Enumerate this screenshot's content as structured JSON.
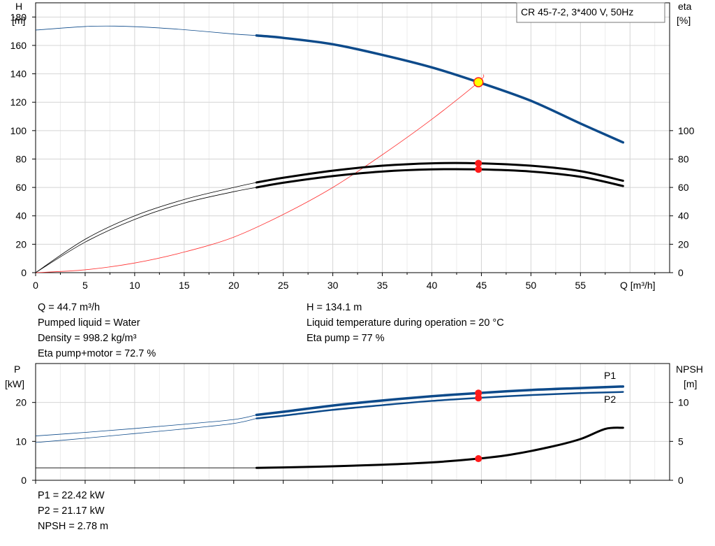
{
  "colors": {
    "head_curve": "#0d4a8a",
    "power_curve": "#0d4a8a",
    "efficiency_curve": "#000000",
    "npsh_curve": "#000000",
    "aux_curve": "#ff3030",
    "marker": "#ff1a1a",
    "duty_point_fill": "#ffff00",
    "grid": "#d4d4d4"
  },
  "chart_data": [
    {
      "type": "line",
      "title": "CR 45-7-2, 3*400 V, 50Hz",
      "xlabel": "Q [m³/h]",
      "ylabel": "H\n[m]",
      "ylabel_lines": [
        "H",
        "[m]"
      ],
      "y2label_lines": [
        "eta",
        "[%]"
      ],
      "xlim": [
        0,
        64
      ],
      "ylim": [
        0,
        190
      ],
      "y2lim": [
        0,
        190
      ],
      "xticks": [
        0,
        5,
        10,
        15,
        20,
        25,
        30,
        35,
        40,
        45,
        50,
        55
      ],
      "yticks": [
        0,
        20,
        40,
        60,
        80,
        100,
        120,
        140,
        160,
        180
      ],
      "y2ticks": [
        0,
        20,
        40,
        60,
        80,
        100
      ],
      "grid": true,
      "duty_point": {
        "x": 44.7,
        "y": 134.1
      },
      "series": [
        {
          "role": "head",
          "axis": "y",
          "thin_until": 22.3,
          "points": [
            [
              0,
              170.8
            ],
            [
              5,
              173.3
            ],
            [
              8,
              173.6
            ],
            [
              12,
              172.5
            ],
            [
              16,
              170.5
            ],
            [
              20,
              168.0
            ],
            [
              22.3,
              167.0
            ],
            [
              25,
              165.3
            ],
            [
              30,
              160.8
            ],
            [
              35,
              153.3
            ],
            [
              40,
              144.5
            ],
            [
              44.7,
              134.1
            ],
            [
              50,
              121.0
            ],
            [
              55,
              105.0
            ],
            [
              59.3,
              91.7
            ]
          ]
        },
        {
          "role": "eta_pump",
          "axis": "y2",
          "thin_until": 22.3,
          "points": [
            [
              0,
              0
            ],
            [
              5,
              23.5
            ],
            [
              10,
              40.0
            ],
            [
              15,
              51.5
            ],
            [
              20,
              60.0
            ],
            [
              22.3,
              63.5
            ],
            [
              25,
              66.8
            ],
            [
              30,
              71.8
            ],
            [
              35,
              75.3
            ],
            [
              40,
              77.0
            ],
            [
              44.7,
              77.0
            ],
            [
              50,
              75.3
            ],
            [
              55,
              71.5
            ],
            [
              59.3,
              64.7
            ]
          ]
        },
        {
          "role": "eta_pump_motor",
          "axis": "y2",
          "thin_until": 22.3,
          "points": [
            [
              0,
              0
            ],
            [
              5,
              21.5
            ],
            [
              10,
              37.5
            ],
            [
              15,
              49.0
            ],
            [
              20,
              57.0
            ],
            [
              22.3,
              60.0
            ],
            [
              25,
              63.3
            ],
            [
              30,
              68.0
            ],
            [
              35,
              71.2
            ],
            [
              40,
              72.7
            ],
            [
              44.7,
              72.7
            ],
            [
              50,
              71.2
            ],
            [
              55,
              67.5
            ],
            [
              59.3,
              61.0
            ]
          ]
        },
        {
          "role": "aux",
          "axis": "y",
          "thin_until": 64,
          "points": [
            [
              0,
              0
            ],
            [
              5,
              2
            ],
            [
              10,
              6.8
            ],
            [
              15,
              14.5
            ],
            [
              20,
              25
            ],
            [
              25,
              41
            ],
            [
              30,
              60
            ],
            [
              35,
              83
            ],
            [
              40,
              108
            ],
            [
              44.7,
              134.1
            ],
            [
              45.2,
              139.5
            ]
          ]
        }
      ],
      "markers": [
        {
          "x": 44.7,
          "y": 77.0,
          "axis": "y2"
        },
        {
          "x": 44.7,
          "y": 72.7,
          "axis": "y2"
        }
      ]
    },
    {
      "type": "line",
      "title": "",
      "xlabel": "",
      "ylabel_lines": [
        "P",
        "[kW]"
      ],
      "y2label_lines": [
        "NPSH",
        "[m]"
      ],
      "xlim": [
        0,
        64
      ],
      "ylim": [
        0,
        30
      ],
      "y2lim": [
        0,
        15
      ],
      "yticks": [
        0,
        10,
        20
      ],
      "y2ticks": [
        0,
        5,
        10
      ],
      "grid": true,
      "series": [
        {
          "name": "P1",
          "role": "p1",
          "axis": "y",
          "thin_until": 22.3,
          "points": [
            [
              0,
              11.4
            ],
            [
              5,
              12.3
            ],
            [
              10,
              13.3
            ],
            [
              15,
              14.4
            ],
            [
              20,
              15.6
            ],
            [
              22.3,
              16.8
            ],
            [
              25,
              17.6
            ],
            [
              30,
              19.2
            ],
            [
              35,
              20.5
            ],
            [
              40,
              21.6
            ],
            [
              44.7,
              22.42
            ],
            [
              50,
              23.2
            ],
            [
              55,
              23.7
            ],
            [
              59.3,
              24.1
            ]
          ]
        },
        {
          "name": "P2",
          "role": "p2",
          "axis": "y",
          "thin_until": 22.3,
          "points": [
            [
              0,
              9.7
            ],
            [
              5,
              10.8
            ],
            [
              10,
              12.0
            ],
            [
              15,
              13.2
            ],
            [
              20,
              14.6
            ],
            [
              22.3,
              15.9
            ],
            [
              25,
              16.6
            ],
            [
              30,
              18.1
            ],
            [
              35,
              19.3
            ],
            [
              40,
              20.4
            ],
            [
              44.7,
              21.17
            ],
            [
              50,
              21.9
            ],
            [
              55,
              22.4
            ],
            [
              59.3,
              22.7
            ]
          ]
        },
        {
          "role": "npsh",
          "axis": "y2",
          "thin_until": 22.3,
          "points": [
            [
              0,
              1.6
            ],
            [
              5,
              1.6
            ],
            [
              10,
              1.6
            ],
            [
              15,
              1.6
            ],
            [
              20,
              1.6
            ],
            [
              22.3,
              1.6
            ],
            [
              25,
              1.65
            ],
            [
              30,
              1.8
            ],
            [
              35,
              2.0
            ],
            [
              40,
              2.3
            ],
            [
              44.7,
              2.78
            ],
            [
              48,
              3.3
            ],
            [
              52,
              4.3
            ],
            [
              55,
              5.3
            ],
            [
              57.5,
              6.6
            ],
            [
              59.3,
              6.75
            ]
          ]
        }
      ],
      "markers": [
        {
          "x": 44.7,
          "y": 22.42,
          "axis": "y"
        },
        {
          "x": 44.7,
          "y": 21.17,
          "axis": "y"
        },
        {
          "x": 44.7,
          "y": 2.78,
          "axis": "y2"
        }
      ]
    }
  ],
  "info": {
    "flow": "Q = 44.7 m³/h",
    "head": "H = 134.1 m",
    "liquid": "Pumped liquid = Water",
    "temperature": "Liquid temperature during operation = 20 °C",
    "density": "Density = 998.2 kg/m³",
    "eta_pump": "Eta pump = 77 %",
    "eta_pump_motor": "Eta pump+motor = 72.7 %",
    "p1": "P1 = 22.42 kW",
    "p2": "P2 = 21.17 kW",
    "npsh": "NPSH = 2.78 m"
  }
}
